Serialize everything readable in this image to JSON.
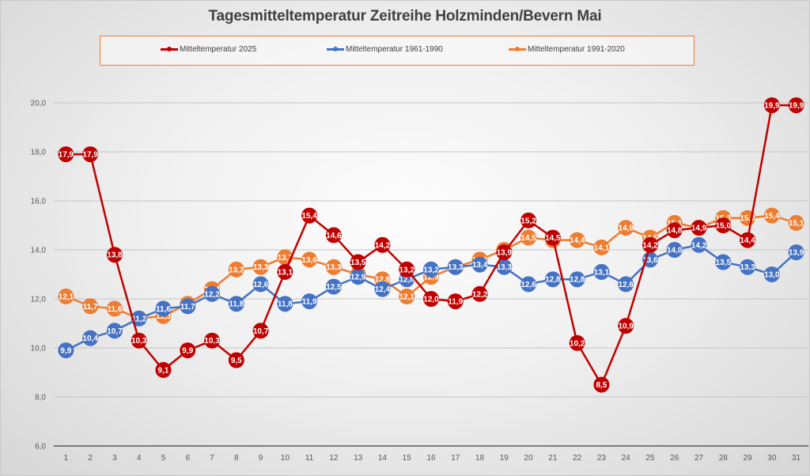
{
  "chart_data": {
    "type": "line",
    "title": "Tagesmitteltemperatur Zeitreihe Holzminden/Bevern Mai",
    "xlabel": "",
    "ylabel": "",
    "x": [
      1,
      2,
      3,
      4,
      5,
      6,
      7,
      8,
      9,
      10,
      11,
      12,
      13,
      14,
      15,
      16,
      17,
      18,
      19,
      20,
      21,
      22,
      23,
      24,
      25,
      26,
      27,
      28,
      29,
      30,
      31
    ],
    "x_tick_labels": [
      "1",
      "2",
      "3",
      "4",
      "5",
      "6",
      "7",
      "8",
      "9",
      "10",
      "11",
      "12",
      "13",
      "14",
      "15",
      "16",
      "17",
      "18",
      "19",
      "20",
      "21",
      "22",
      "23",
      "24",
      "25",
      "26",
      "27",
      "28",
      "29",
      "30",
      "31"
    ],
    "ylim": [
      6.0,
      20.0
    ],
    "y_ticks": [
      6.0,
      8.0,
      10.0,
      12.0,
      14.0,
      16.0,
      18.0,
      20.0
    ],
    "y_tick_labels": [
      "6,0",
      "8,0",
      "10,0",
      "12,0",
      "14,0",
      "16,0",
      "18,0",
      "20,0"
    ],
    "grid": true,
    "legend_position": "top",
    "series": [
      {
        "name": "Mitteltemperatur 1991-2020",
        "color": "#ed7d31",
        "values": [
          12.1,
          11.7,
          11.6,
          11.2,
          11.3,
          11.8,
          12.4,
          13.2,
          13.3,
          13.7,
          13.6,
          13.3,
          13.0,
          12.8,
          12.1,
          12.9,
          13.3,
          13.6,
          14.0,
          14.5,
          14.4,
          14.4,
          14.1,
          14.9,
          14.5,
          15.1,
          14.9,
          15.3,
          15.3,
          15.4,
          15.1
        ]
      },
      {
        "name": "Mitteltemperatur 1961-1990",
        "color": "#4472c4",
        "values": [
          9.9,
          10.4,
          10.7,
          11.2,
          11.6,
          11.7,
          12.2,
          11.8,
          12.6,
          11.8,
          11.9,
          12.5,
          12.9,
          12.4,
          12.8,
          13.2,
          13.3,
          13.4,
          13.3,
          12.6,
          12.8,
          12.8,
          13.1,
          12.6,
          13.6,
          14.0,
          14.2,
          13.5,
          13.3,
          13.0,
          13.9
        ]
      },
      {
        "name": "Mitteltemperatur 2025",
        "color": "#c00000",
        "values": [
          17.9,
          17.9,
          13.8,
          10.3,
          9.1,
          9.9,
          10.3,
          9.5,
          10.7,
          13.1,
          15.4,
          14.6,
          13.5,
          14.2,
          13.2,
          12.0,
          11.9,
          12.2,
          13.9,
          15.2,
          14.5,
          10.2,
          8.5,
          10.9,
          14.2,
          14.8,
          14.9,
          15.0,
          14.4,
          19.9,
          19.9
        ]
      }
    ],
    "legend_order": [
      {
        "name": "Mitteltemperatur 2025",
        "color": "#c00000"
      },
      {
        "name": "Mitteltemperatur 1961-1990",
        "color": "#4472c4"
      },
      {
        "name": "Mitteltemperatur 1991-2020",
        "color": "#ed7d31"
      }
    ]
  }
}
